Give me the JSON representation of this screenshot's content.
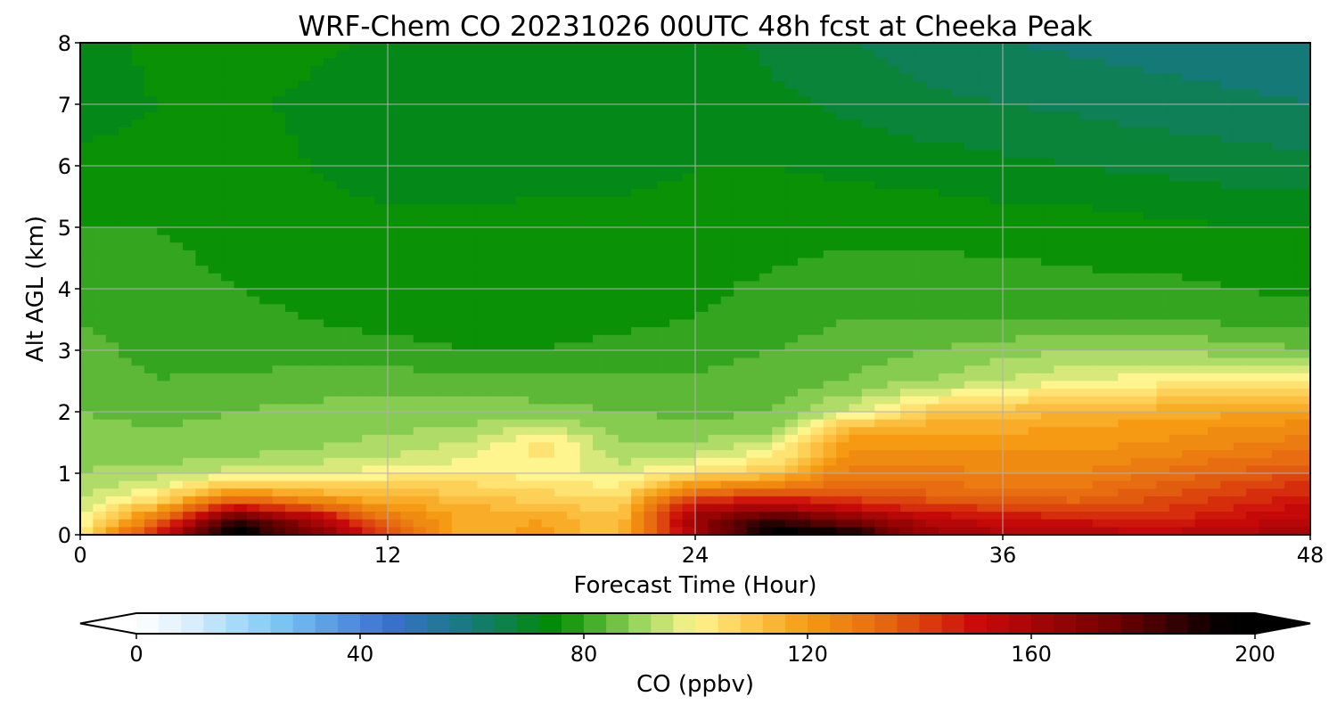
{
  "chart_data": {
    "type": "heatmap",
    "title": "WRF-Chem CO  20231026 00UTC 48h fcst at Cheeka Peak",
    "xlabel": "Forecast Time (Hour)",
    "ylabel": "Alt AGL (km)",
    "xlim": [
      0,
      48
    ],
    "ylim": [
      0,
      8
    ],
    "x_ticks": [
      0,
      12,
      24,
      36,
      48
    ],
    "y_ticks": [
      0,
      1,
      2,
      3,
      4,
      5,
      6,
      7,
      8
    ],
    "grid": true,
    "x": [
      0,
      3,
      6,
      9,
      12,
      15,
      18,
      21,
      24,
      27,
      30,
      33,
      36,
      39,
      42,
      45,
      48
    ],
    "y": [
      0,
      0.25,
      0.5,
      0.75,
      1.0,
      1.25,
      1.5,
      1.75,
      2.0,
      2.5,
      3.0,
      3.5,
      4.0,
      5.0,
      6.0,
      7.0,
      8.0
    ],
    "z": [
      [
        100,
        150,
        200,
        175,
        140,
        115,
        120,
        110,
        160,
        200,
        195,
        165,
        160,
        158,
        155,
        160,
        160
      ],
      [
        98,
        130,
        185,
        160,
        130,
        115,
        118,
        110,
        165,
        185,
        170,
        155,
        150,
        148,
        145,
        150,
        155
      ],
      [
        95,
        110,
        140,
        130,
        118,
        115,
        110,
        108,
        150,
        155,
        145,
        140,
        138,
        135,
        140,
        145,
        150
      ],
      [
        92,
        98,
        115,
        110,
        108,
        108,
        105,
        102,
        125,
        130,
        135,
        132,
        130,
        130,
        135,
        140,
        145
      ],
      [
        90,
        92,
        96,
        98,
        100,
        102,
        100,
        97,
        105,
        110,
        128,
        128,
        126,
        126,
        130,
        135,
        138
      ],
      [
        89,
        88,
        90,
        92,
        94,
        97,
        103,
        92,
        95,
        102,
        124,
        124,
        123,
        123,
        126,
        130,
        132
      ],
      [
        88,
        87,
        88,
        89,
        91,
        94,
        104,
        90,
        90,
        95,
        120,
        120,
        120,
        120,
        122,
        125,
        128
      ],
      [
        87,
        86,
        87,
        88,
        89,
        90,
        94,
        88,
        87,
        88,
        112,
        116,
        117,
        118,
        120,
        122,
        124
      ],
      [
        86,
        84,
        86,
        87,
        88,
        88,
        87,
        86,
        85,
        86,
        95,
        108,
        112,
        114,
        116,
        117,
        118
      ],
      [
        84,
        82,
        83,
        84,
        84,
        84,
        84,
        83,
        83,
        84,
        86,
        90,
        94,
        98,
        100,
        100,
        100
      ],
      [
        83,
        81,
        80,
        79,
        79,
        78,
        78,
        79,
        80,
        82,
        84,
        86,
        88,
        90,
        90,
        88,
        86
      ],
      [
        82,
        80,
        79,
        78,
        77,
        77,
        77,
        77,
        78,
        80,
        82,
        82,
        82,
        82,
        82,
        81,
        80
      ],
      [
        80,
        79,
        78,
        77,
        76,
        76,
        76,
        76,
        77,
        79,
        80,
        80,
        80,
        79,
        79,
        78,
        77
      ],
      [
        78,
        78,
        77,
        76,
        75,
        75,
        75,
        75,
        75,
        76,
        77,
        77,
        76,
        76,
        75,
        74,
        74
      ],
      [
        75,
        76,
        76,
        74,
        72,
        72,
        73,
        73,
        74,
        74,
        73,
        72,
        71,
        70,
        69,
        68,
        67
      ],
      [
        72,
        74,
        75,
        73,
        71,
        71,
        72,
        72,
        73,
        71,
        69,
        67,
        66,
        65,
        64,
        63,
        62
      ],
      [
        72,
        75,
        77,
        75,
        73,
        72,
        73,
        73,
        72,
        69,
        66,
        64,
        62,
        61,
        60,
        59,
        58
      ]
    ],
    "colorbar": {
      "label": "CO  (ppbv)",
      "min": 0,
      "max": 200,
      "ticks": [
        0,
        40,
        80,
        120,
        160,
        200
      ],
      "extend": "both",
      "colors": [
        [
          0,
          "#ffffff"
        ],
        [
          10,
          "#d8eefc"
        ],
        [
          25,
          "#7cc8f5"
        ],
        [
          45,
          "#3a6fd0"
        ],
        [
          60,
          "#157a77"
        ],
        [
          75,
          "#008c00"
        ],
        [
          90,
          "#9bd65e"
        ],
        [
          100,
          "#fff58f"
        ],
        [
          110,
          "#fcc74a"
        ],
        [
          120,
          "#f59a12"
        ],
        [
          135,
          "#e46210"
        ],
        [
          150,
          "#cc0a0a"
        ],
        [
          175,
          "#700000"
        ],
        [
          195,
          "#000000"
        ],
        [
          200,
          "#000000"
        ]
      ]
    }
  }
}
